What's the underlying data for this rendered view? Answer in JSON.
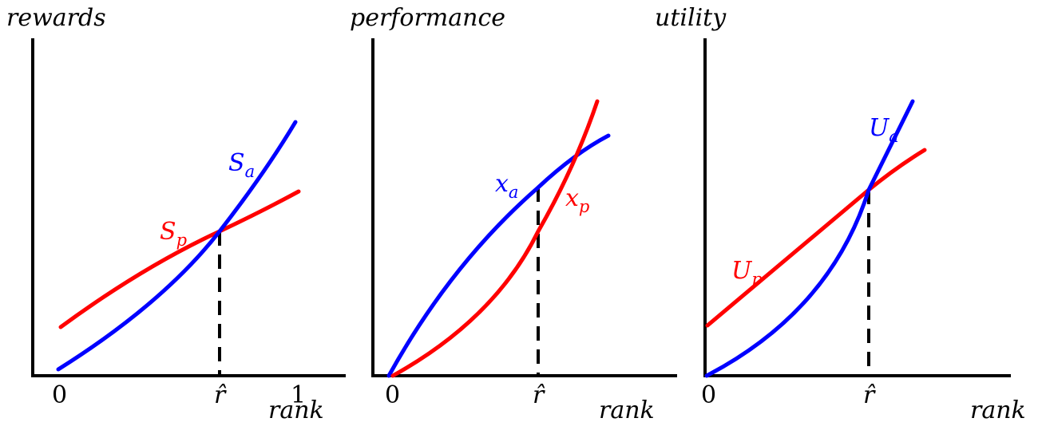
{
  "panels": [
    {
      "id": "rewards",
      "ylabel": "rewards",
      "xlabel": "rank",
      "ticks": [
        "0",
        "r̂",
        "1"
      ],
      "curves": [
        {
          "id": "S_a",
          "base": "S",
          "sub": "a",
          "color": "#0000ff"
        },
        {
          "id": "S_p",
          "base": "S",
          "sub": "p",
          "color": "#ff0000"
        }
      ]
    },
    {
      "id": "performance",
      "ylabel": "performance",
      "xlabel": "rank",
      "ticks": [
        "0",
        "r̂"
      ],
      "curves": [
        {
          "id": "x_a",
          "base": "x",
          "sub": "a",
          "color": "#0000ff"
        },
        {
          "id": "x_p",
          "base": "x",
          "sub": "p",
          "color": "#ff0000"
        }
      ]
    },
    {
      "id": "utility",
      "ylabel": "utility",
      "xlabel": "rank",
      "ticks": [
        "0",
        "r̂"
      ],
      "curves": [
        {
          "id": "U_a",
          "base": "U",
          "sub": "a",
          "color": "#0000ff"
        },
        {
          "id": "U_p",
          "base": "U",
          "sub": "p",
          "color": "#ff0000"
        }
      ]
    }
  ]
}
